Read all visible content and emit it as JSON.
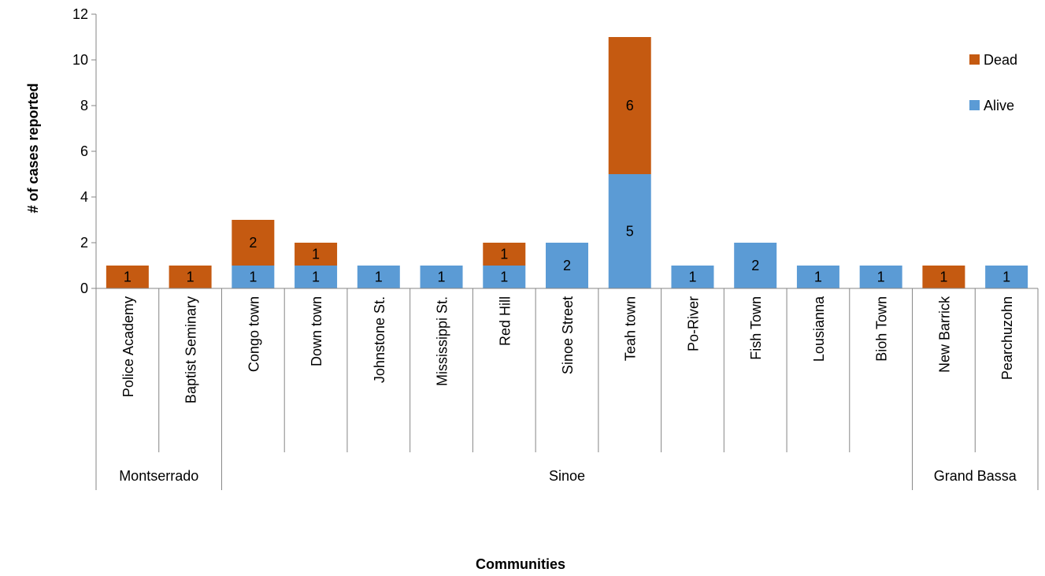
{
  "chart_data": {
    "type": "bar",
    "stacked": true,
    "xlabel": "Communities",
    "ylabel": "# of cases reported",
    "ylim": [
      0,
      12
    ],
    "yticks": [
      0,
      2,
      4,
      6,
      8,
      10,
      12
    ],
    "grid": false,
    "legend_position": "right",
    "categories": [
      "Police Academy",
      "Baptist Seminary",
      "Congo town",
      "Down town",
      "Johnstone St.",
      "Mississippi St.",
      "Red Hill",
      "Sinoe Street",
      "Teah town",
      "Po-River",
      "Fish Town",
      "Lousianna",
      "Bioh Town",
      "New Barrick",
      "Pearchuzohn"
    ],
    "groups": [
      {
        "name": "Montserrado",
        "start": 0,
        "end": 1
      },
      {
        "name": "Sinoe",
        "start": 2,
        "end": 12
      },
      {
        "name": "Grand Bassa",
        "start": 13,
        "end": 14
      }
    ],
    "series": [
      {
        "name": "Alive",
        "color": "#5b9bd5",
        "values": [
          0,
          0,
          1,
          1,
          1,
          1,
          1,
          2,
          5,
          1,
          2,
          1,
          1,
          0,
          1
        ]
      },
      {
        "name": "Dead",
        "color": "#c55a11",
        "values": [
          1,
          1,
          2,
          1,
          0,
          0,
          1,
          0,
          6,
          0,
          0,
          0,
          0,
          1,
          0
        ]
      }
    ],
    "legend_order": [
      "Dead",
      "Alive"
    ]
  }
}
